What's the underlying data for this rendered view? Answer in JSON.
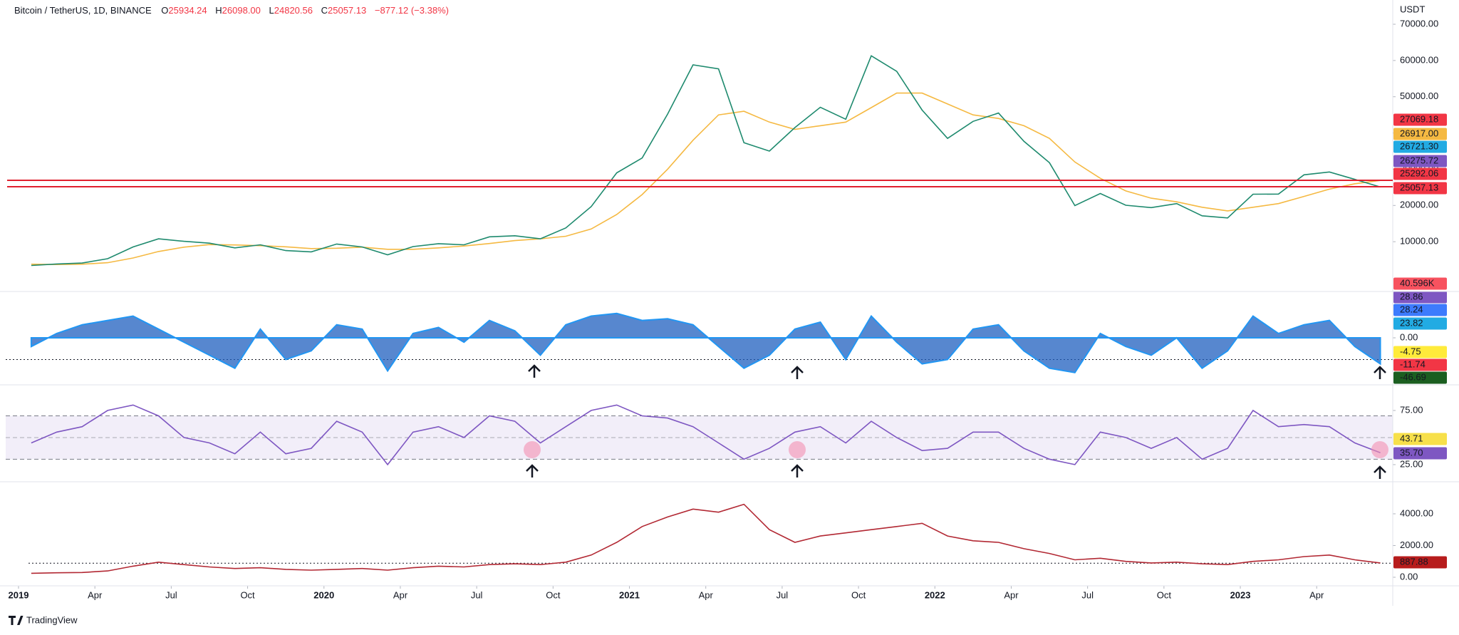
{
  "header": {
    "symbol": "Bitcoin / TetherUS, 1D, BINANCE",
    "o_label": "O",
    "open": "25934.24",
    "h_label": "H",
    "high": "26098.00",
    "l_label": "L",
    "low": "24820.56",
    "c_label": "C",
    "close": "25057.13",
    "change": "−877.12 (−3.38%)"
  },
  "footer": {
    "brand": "TradingView"
  },
  "x_axis": {
    "ticks": [
      {
        "value": "2019-01",
        "label": "2019"
      },
      {
        "value": "2019-04",
        "label": "Apr"
      },
      {
        "value": "2019-07",
        "label": "Jul"
      },
      {
        "value": "2019-10",
        "label": "Oct"
      },
      {
        "value": "2020-01",
        "label": "2020"
      },
      {
        "value": "2020-04",
        "label": "Apr"
      },
      {
        "value": "2020-07",
        "label": "Jul"
      },
      {
        "value": "2020-10",
        "label": "Oct"
      },
      {
        "value": "2021-01",
        "label": "2021"
      },
      {
        "value": "2021-04",
        "label": "Apr"
      },
      {
        "value": "2021-07",
        "label": "Jul"
      },
      {
        "value": "2021-10",
        "label": "Oct"
      },
      {
        "value": "2022-01",
        "label": "2022"
      },
      {
        "value": "2022-04",
        "label": "Apr"
      },
      {
        "value": "2022-07",
        "label": "Jul"
      },
      {
        "value": "2022-10",
        "label": "Oct"
      },
      {
        "value": "2023-01",
        "label": "2023"
      },
      {
        "value": "2023-04",
        "label": "Apr"
      }
    ]
  },
  "chart_data": [
    {
      "type": "line",
      "unit": "USDT",
      "ylim": [
        -2950,
        76690
      ],
      "yticks": [
        {
          "value": 10000,
          "label": "10000.00"
        },
        {
          "value": 20000,
          "label": "20000.00"
        },
        {
          "value": 30000,
          "label": "30000.00"
        },
        {
          "value": 40000,
          "label": "40000.00"
        },
        {
          "value": 50000,
          "label": "50000.00"
        },
        {
          "value": 60000,
          "label": "60000.00"
        },
        {
          "value": 70000,
          "label": "70000.00"
        }
      ],
      "x": [
        "2019-01",
        "2019-02",
        "2019-03",
        "2019-04",
        "2019-05",
        "2019-06",
        "2019-07",
        "2019-08",
        "2019-09",
        "2019-10",
        "2019-11",
        "2019-12",
        "2020-01",
        "2020-02",
        "2020-03",
        "2020-04",
        "2020-05",
        "2020-06",
        "2020-07",
        "2020-08",
        "2020-09",
        "2020-10",
        "2020-11",
        "2020-12",
        "2021-01",
        "2021-02",
        "2021-03",
        "2021-04",
        "2021-05",
        "2021-06",
        "2021-07",
        "2021-08",
        "2021-09",
        "2021-10",
        "2021-11",
        "2021-12",
        "2022-01",
        "2022-02",
        "2022-03",
        "2022-04",
        "2022-05",
        "2022-06",
        "2022-07",
        "2022-08",
        "2022-09",
        "2022-10",
        "2022-11",
        "2022-12",
        "2023-01",
        "2023-02",
        "2023-03",
        "2023-04",
        "2023-05",
        "2023-06"
      ],
      "series": [
        {
          "color": "#f5b942",
          "values": [
            3800,
            3700,
            3800,
            4200,
            5500,
            7300,
            8500,
            9200,
            9100,
            8900,
            8600,
            8100,
            8200,
            8500,
            7900,
            7900,
            8300,
            8800,
            9500,
            10300,
            10800,
            11500,
            13500,
            17500,
            23000,
            30000,
            38000,
            45000,
            46000,
            43000,
            41000,
            42000,
            43000,
            47000,
            51000,
            51000,
            48000,
            45000,
            44000,
            42000,
            38500,
            32000,
            27500,
            24000,
            22000,
            21000,
            19500,
            18500,
            19500,
            20500,
            22500,
            24500,
            26000,
            26900
          ]
        },
        {
          "color": "#1e8a6e",
          "values": [
            3450,
            3850,
            4100,
            5300,
            8550,
            10800,
            10100,
            9600,
            8300,
            9150,
            7550,
            7200,
            9350,
            8550,
            6400,
            8650,
            9450,
            9150,
            11350,
            11650,
            10800,
            13800,
            19700,
            29000,
            33100,
            45200,
            58800,
            57700,
            37300,
            35000,
            41500,
            47100,
            43800,
            61300,
            57000,
            46300,
            38500,
            43200,
            45500,
            37700,
            31800,
            19950,
            23300,
            20050,
            19400,
            20500,
            17150,
            16550,
            23100,
            23150,
            28450,
            29250,
            27200,
            25100
          ]
        }
      ],
      "price_tags": [
        {
          "value": 27069.18,
          "label": "27069.18",
          "color": "#f23645",
          "text_color": "#ffffff"
        },
        {
          "value": 26917,
          "label": "26917.00",
          "color": "#f5b942",
          "text_color": "#131722"
        },
        {
          "value": 26721.3,
          "label": "26721.30",
          "color": "#22abe3",
          "text_color": "#131722"
        },
        {
          "value": 26275.72,
          "label": "26275.72",
          "color": "#7e57c2",
          "text_color": "#ffffff"
        },
        {
          "value": 25292.06,
          "label": "25292.06",
          "color": "#f23645",
          "text_color": "#ffffff"
        },
        {
          "value": 25057.13,
          "label": "25057.13",
          "color": "#f23645",
          "text_color": "#ffffff"
        },
        {
          "value": 40596,
          "label": "40.596K",
          "color": "#f7525f",
          "text_color": "#ffffff"
        }
      ]
    },
    {
      "type": "area",
      "ylim": [
        -50,
        50
      ],
      "yticks": [
        {
          "value": 0,
          "label": "0.00"
        }
      ],
      "ref_level": -25,
      "x": [
        "2019-01",
        "2019-02",
        "2019-03",
        "2019-04",
        "2019-05",
        "2019-06",
        "2019-07",
        "2019-08",
        "2019-09",
        "2019-10",
        "2019-11",
        "2019-12",
        "2020-01",
        "2020-02",
        "2020-03",
        "2020-04",
        "2020-05",
        "2020-06",
        "2020-07",
        "2020-08",
        "2020-09",
        "2020-10",
        "2020-11",
        "2020-12",
        "2021-01",
        "2021-02",
        "2021-03",
        "2021-04",
        "2021-05",
        "2021-06",
        "2021-07",
        "2021-08",
        "2021-09",
        "2021-10",
        "2021-11",
        "2021-12",
        "2022-01",
        "2022-02",
        "2022-03",
        "2022-04",
        "2022-05",
        "2022-06",
        "2022-07",
        "2022-08",
        "2022-09",
        "2022-10",
        "2022-11",
        "2022-12",
        "2023-01",
        "2023-02",
        "2023-03",
        "2023-04",
        "2023-05",
        "2023-06"
      ],
      "series": [
        {
          "color": "#1f5fbf",
          "values": [
            -10,
            5,
            15,
            20,
            25,
            10,
            -5,
            -20,
            -35,
            10,
            -25,
            -15,
            15,
            10,
            -38,
            5,
            12,
            -5,
            20,
            8,
            -20,
            15,
            25,
            28,
            20,
            22,
            15,
            -10,
            -35,
            -20,
            10,
            18,
            -25,
            25,
            -5,
            -30,
            -25,
            10,
            15,
            -15,
            -35,
            -40,
            5,
            -10,
            -20,
            0,
            -35,
            -15,
            25,
            5,
            15,
            20,
            -10,
            -30
          ]
        }
      ],
      "price_tags": [
        {
          "value": 28.86,
          "label": "28.86",
          "color": "#7e57c2",
          "text_color": "#ffffff"
        },
        {
          "value": 28.24,
          "label": "28.24",
          "color": "#3d7bfd",
          "text_color": "#ffffff"
        },
        {
          "value": 23.82,
          "label": "23.82",
          "color": "#22abe3",
          "text_color": "#131722"
        },
        {
          "value": -4.75,
          "label": "-4.75",
          "color": "#ffeb3b",
          "text_color": "#131722"
        },
        {
          "value": -11.74,
          "label": "-11.74",
          "color": "#f23645",
          "text_color": "#ffffff"
        },
        {
          "value": -46.69,
          "label": "-46.69",
          "color": "#1b5e20",
          "text_color": "#ffffff"
        }
      ]
    },
    {
      "type": "line",
      "ylim": [
        11.8,
        94.7
      ],
      "yticks": [
        {
          "value": 75,
          "label": "75.00"
        },
        {
          "value": 25,
          "label": "25.00"
        }
      ],
      "band": [
        30,
        70
      ],
      "midline": 50,
      "x": [
        "2019-01",
        "2019-02",
        "2019-03",
        "2019-04",
        "2019-05",
        "2019-06",
        "2019-07",
        "2019-08",
        "2019-09",
        "2019-10",
        "2019-11",
        "2019-12",
        "2020-01",
        "2020-02",
        "2020-03",
        "2020-04",
        "2020-05",
        "2020-06",
        "2020-07",
        "2020-08",
        "2020-09",
        "2020-10",
        "2020-11",
        "2020-12",
        "2021-01",
        "2021-02",
        "2021-03",
        "2021-04",
        "2021-05",
        "2021-06",
        "2021-07",
        "2021-08",
        "2021-09",
        "2021-10",
        "2021-11",
        "2021-12",
        "2022-01",
        "2022-02",
        "2022-03",
        "2022-04",
        "2022-05",
        "2022-06",
        "2022-07",
        "2022-08",
        "2022-09",
        "2022-10",
        "2022-11",
        "2022-12",
        "2023-01",
        "2023-02",
        "2023-03",
        "2023-04",
        "2023-05",
        "2023-06"
      ],
      "series": [
        {
          "color": "#7e57c2",
          "values": [
            45,
            55,
            60,
            75,
            80,
            70,
            50,
            45,
            35,
            55,
            35,
            40,
            65,
            55,
            25,
            55,
            60,
            50,
            70,
            65,
            45,
            60,
            75,
            80,
            70,
            68,
            60,
            45,
            30,
            40,
            55,
            60,
            45,
            65,
            50,
            38,
            40,
            55,
            55,
            40,
            30,
            25,
            55,
            50,
            40,
            50,
            30,
            40,
            75,
            60,
            62,
            60,
            45,
            36
          ]
        }
      ],
      "price_tags": [
        {
          "value": 43.71,
          "label": "43.71",
          "color": "#f7e04a",
          "text_color": "#131722"
        },
        {
          "value": 35.7,
          "label": "35.70",
          "color": "#7e57c2",
          "text_color": "#ffffff"
        }
      ]
    },
    {
      "type": "line",
      "ylim": [
        -540,
        5840
      ],
      "yticks": [
        {
          "value": 4000,
          "label": "4000.00"
        },
        {
          "value": 2000,
          "label": "2000.00"
        },
        {
          "value": 0,
          "label": "0.00"
        }
      ],
      "x": [
        "2019-01",
        "2019-02",
        "2019-03",
        "2019-04",
        "2019-05",
        "2019-06",
        "2019-07",
        "2019-08",
        "2019-09",
        "2019-10",
        "2019-11",
        "2019-12",
        "2020-01",
        "2020-02",
        "2020-03",
        "2020-04",
        "2020-05",
        "2020-06",
        "2020-07",
        "2020-08",
        "2020-09",
        "2020-10",
        "2020-11",
        "2020-12",
        "2021-01",
        "2021-02",
        "2021-03",
        "2021-04",
        "2021-05",
        "2021-06",
        "2021-07",
        "2021-08",
        "2021-09",
        "2021-10",
        "2021-11",
        "2021-12",
        "2022-01",
        "2022-02",
        "2022-03",
        "2022-04",
        "2022-05",
        "2022-06",
        "2022-07",
        "2022-08",
        "2022-09",
        "2022-10",
        "2022-11",
        "2022-12",
        "2023-01",
        "2023-02",
        "2023-03",
        "2023-04",
        "2023-05",
        "2023-06"
      ],
      "series": [
        {
          "color": "#b22833",
          "values": [
            250,
            280,
            300,
            400,
            700,
            950,
            800,
            650,
            550,
            600,
            500,
            450,
            500,
            550,
            450,
            600,
            700,
            650,
            800,
            850,
            800,
            950,
            1400,
            2200,
            3200,
            3800,
            4300,
            4100,
            4600,
            3000,
            2200,
            2600,
            2800,
            3000,
            3200,
            3400,
            2600,
            2300,
            2200,
            1800,
            1500,
            1100,
            1200,
            1000,
            900,
            950,
            850,
            800,
            1000,
            1100,
            1300,
            1400,
            1100,
            900
          ]
        }
      ],
      "price_tags": [
        {
          "value": 887.88,
          "label": "887.88",
          "color": "#b71c1c",
          "text_color": "#ffffff"
        }
      ],
      "ref_tag": 0
    }
  ]
}
